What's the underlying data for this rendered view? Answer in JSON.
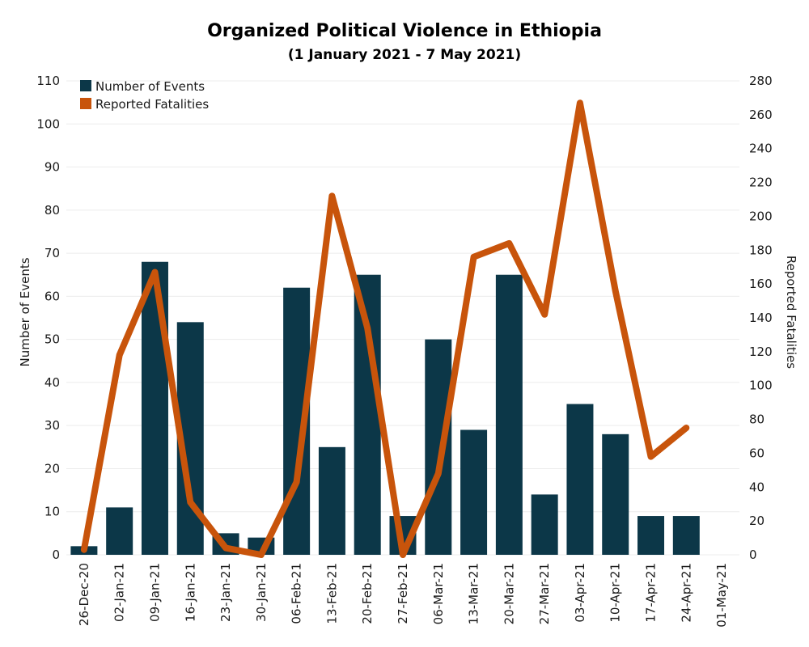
{
  "colors": {
    "bars": "#0c3748",
    "line": "#c8540b"
  },
  "chart_data": {
    "type": "bar",
    "title": "Organized Political Violence in Ethiopia",
    "subtitle": "(1 January 2021 - 7 May 2021)",
    "categories": [
      "26-Dec-20",
      "02-Jan-21",
      "09-Jan-21",
      "16-Jan-21",
      "23-Jan-21",
      "30-Jan-21",
      "06-Feb-21",
      "13-Feb-21",
      "20-Feb-21",
      "27-Feb-21",
      "06-Mar-21",
      "13-Mar-21",
      "20-Mar-21",
      "27-Mar-21",
      "03-Apr-21",
      "10-Apr-21",
      "17-Apr-21",
      "24-Apr-21",
      "01-May-21"
    ],
    "ylabel": "Number of Events",
    "y2label": "Reported Fatalities",
    "ylim": [
      0,
      110
    ],
    "y2lim": [
      0,
      280
    ],
    "yticks": [
      0,
      10,
      20,
      30,
      40,
      50,
      60,
      70,
      80,
      90,
      100,
      110
    ],
    "y2ticks": [
      0,
      20,
      40,
      60,
      80,
      100,
      120,
      140,
      160,
      180,
      200,
      220,
      240,
      260,
      280
    ],
    "legend_position": "top-left",
    "series": [
      {
        "name": "Number of Events",
        "type": "bar",
        "axis": "left",
        "values": [
          2,
          11,
          68,
          54,
          5,
          4,
          62,
          25,
          65,
          9,
          50,
          29,
          65,
          14,
          35,
          28,
          9,
          9,
          null
        ]
      },
      {
        "name": "Reported Fatalities",
        "type": "line",
        "axis": "right",
        "values": [
          3,
          118,
          167,
          31,
          4,
          0,
          43,
          212,
          134,
          0,
          48,
          176,
          184,
          142,
          267,
          156,
          58,
          75,
          null
        ]
      }
    ]
  }
}
